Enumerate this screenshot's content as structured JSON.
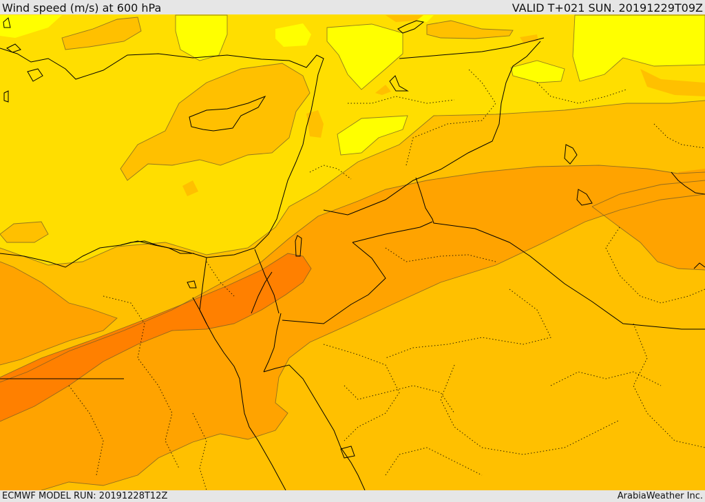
{
  "header": {
    "title": "Wind speed (m/s) at 600 hPa",
    "valid_time": "VALID T+021 SUN. 20191229T09Z"
  },
  "footer": {
    "model_run": "ECMWF MODEL RUN: 20191228T12Z",
    "credit": "ArabiaWeather Inc."
  },
  "palette": {
    "band_1": "#ffff00",
    "band_2": "#ffde00",
    "band_3": "#ffc000",
    "band_4": "#ffa300",
    "band_5": "#ff8000",
    "contour": "#6e5a28",
    "border": "#000000"
  }
}
